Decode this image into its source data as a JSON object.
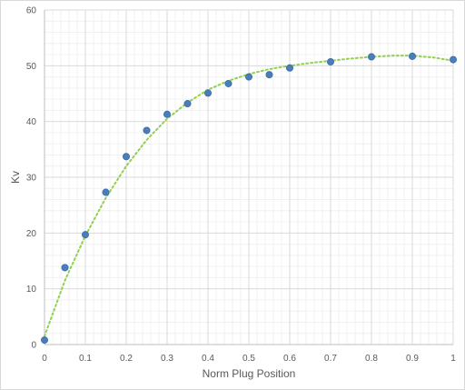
{
  "chart_data": {
    "type": "scatter",
    "xlabel": "Norm Plug Position",
    "ylabel": "Kv",
    "xlim": [
      0,
      1
    ],
    "ylim": [
      0,
      60
    ],
    "x_major_ticks": [
      0,
      0.1,
      0.2,
      0.3,
      0.4,
      0.5,
      0.6,
      0.7,
      0.8,
      0.9,
      1
    ],
    "x_tick_labels": [
      "0",
      "0.1",
      "0.2",
      "0.3",
      "0.4",
      "0.5",
      "0.6",
      "0.7",
      "0.8",
      "0.9",
      "1"
    ],
    "y_major_ticks": [
      0,
      10,
      20,
      30,
      40,
      50,
      60
    ],
    "y_tick_labels": [
      "0",
      "10",
      "20",
      "30",
      "40",
      "50",
      "60"
    ],
    "grid": "major and minor",
    "legend": "none",
    "series": [
      {
        "marker_color": "#4a7ebb",
        "trendline": "dotted polynomial",
        "trendline_color": "#92d050",
        "points": [
          [
            0.0,
            0.8
          ],
          [
            0.05,
            13.8
          ],
          [
            0.1,
            19.7
          ],
          [
            0.15,
            27.3
          ],
          [
            0.2,
            33.7
          ],
          [
            0.25,
            38.4
          ],
          [
            0.3,
            41.3
          ],
          [
            0.35,
            43.2
          ],
          [
            0.4,
            45.1
          ],
          [
            0.45,
            46.8
          ],
          [
            0.5,
            48.0
          ],
          [
            0.55,
            48.4
          ],
          [
            0.6,
            49.6
          ],
          [
            0.7,
            50.7
          ],
          [
            0.8,
            51.6
          ],
          [
            0.9,
            51.7
          ],
          [
            1.0,
            51.1
          ]
        ],
        "trendline_points": [
          [
            0.0,
            1.5
          ],
          [
            0.05,
            11.5
          ],
          [
            0.1,
            19.5
          ],
          [
            0.15,
            26.3
          ],
          [
            0.2,
            32.0
          ],
          [
            0.25,
            36.7
          ],
          [
            0.3,
            40.5
          ],
          [
            0.35,
            43.4
          ],
          [
            0.4,
            45.7
          ],
          [
            0.45,
            47.3
          ],
          [
            0.5,
            48.5
          ],
          [
            0.55,
            49.4
          ],
          [
            0.6,
            50.0
          ],
          [
            0.65,
            50.5
          ],
          [
            0.7,
            50.9
          ],
          [
            0.75,
            51.3
          ],
          [
            0.8,
            51.6
          ],
          [
            0.85,
            51.8
          ],
          [
            0.9,
            51.8
          ],
          [
            0.95,
            51.5
          ],
          [
            1.0,
            50.9
          ]
        ]
      }
    ]
  }
}
